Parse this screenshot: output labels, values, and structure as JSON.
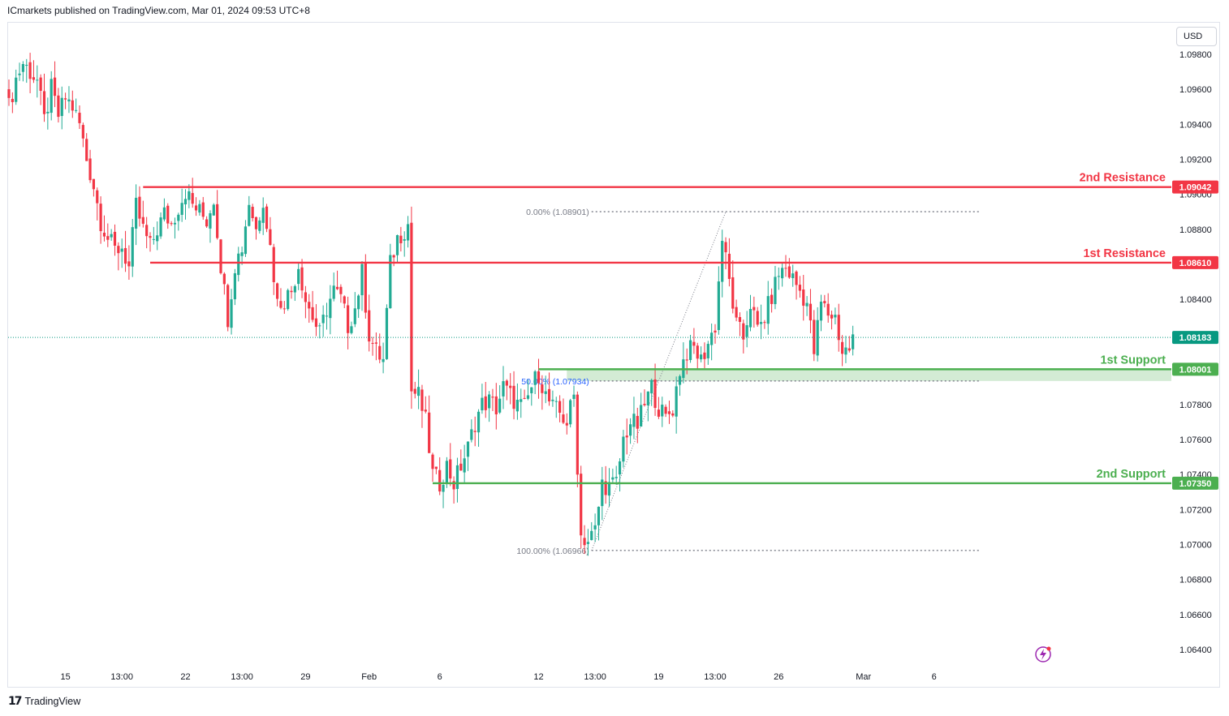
{
  "header": {
    "publisher_line": "ICmarkets published on TradingView.com, Mar 01, 2024 09:53 UTC+8"
  },
  "currency": "USD",
  "footer": {
    "logo_text": "TradingView",
    "logo_mark": "17"
  },
  "colors": {
    "up": "#26a69a",
    "down": "#ef5350",
    "bull_body": "#22ab94",
    "bear_body": "#f23645",
    "resistance": "#f23645",
    "support": "#4caf50",
    "zone": "#c8e6c9",
    "price": "#089981",
    "grid_text": "#131722",
    "fib": "#787b86"
  },
  "chart_data": {
    "type": "candlestick",
    "title": "",
    "ylim": [
      1.063,
      1.0995
    ],
    "y_ticks": [
      "1.09800",
      "1.09600",
      "1.09400",
      "1.09200",
      "1.09000",
      "1.08800",
      "1.08400",
      "1.07800",
      "1.07600",
      "1.07400",
      "1.07200",
      "1.07000",
      "1.06800",
      "1.06600",
      "1.06400"
    ],
    "y_tick_values": [
      1.098,
      1.096,
      1.094,
      1.092,
      1.09,
      1.088,
      1.084,
      1.078,
      1.076,
      1.074,
      1.072,
      1.07,
      1.068,
      1.066,
      1.064
    ],
    "x_ticks": [
      {
        "label": "15",
        "index": 16
      },
      {
        "label": "13:00",
        "index": 32
      },
      {
        "label": "22",
        "index": 50
      },
      {
        "label": "13:00",
        "index": 66
      },
      {
        "label": "29",
        "index": 84
      },
      {
        "label": "Feb",
        "index": 102
      },
      {
        "label": "6",
        "index": 122
      },
      {
        "label": "12",
        "index": 150
      },
      {
        "label": "13:00",
        "index": 166
      },
      {
        "label": "19",
        "index": 184
      },
      {
        "label": "13:00",
        "index": 200
      },
      {
        "label": "26",
        "index": 218
      },
      {
        "label": "Mar",
        "index": 242
      },
      {
        "label": "6",
        "index": 262
      }
    ],
    "last_price": "1.08183",
    "last_price_value": 1.08183,
    "levels": [
      {
        "name": "2nd Resistance",
        "value": 1.09042,
        "label": "1.09042",
        "kind": "resistance",
        "start_index": 38
      },
      {
        "name": "1st Resistance",
        "value": 1.0861,
        "label": "1.08610",
        "kind": "resistance",
        "start_index": 40
      },
      {
        "name": "1st Support",
        "value": 1.08001,
        "label": "1.08001",
        "kind": "support",
        "start_index": 150
      },
      {
        "name": "2nd Support",
        "value": 1.0735,
        "label": "1.07350",
        "kind": "support",
        "start_index": 120
      }
    ],
    "support_zone": {
      "from": 1.07934,
      "to": 1.08001,
      "start_index": 158
    },
    "fibonacci": {
      "start_index": 165,
      "end_index": 203,
      "extend_to_index": 275,
      "levels": [
        {
          "label": "0.00% (1.08901)",
          "value": 1.08901
        },
        {
          "label": "50.00% (1.07934)",
          "value": 1.07934
        },
        {
          "label": "100.00% (1.06966)",
          "value": 1.06966
        }
      ]
    },
    "ohlc_anchors": [
      [
        0,
        1.095
      ],
      [
        2,
        1.0966
      ],
      [
        4,
        1.0975
      ],
      [
        6,
        1.097
      ],
      [
        8,
        1.0965
      ],
      [
        10,
        1.0942
      ],
      [
        12,
        1.096
      ],
      [
        14,
        1.0945
      ],
      [
        16,
        1.0955
      ],
      [
        18,
        1.095
      ],
      [
        20,
        1.094
      ],
      [
        22,
        1.092
      ],
      [
        24,
        1.0905
      ],
      [
        26,
        1.0885
      ],
      [
        28,
        1.0875
      ],
      [
        30,
        1.0868
      ],
      [
        32,
        1.087
      ],
      [
        34,
        1.0858
      ],
      [
        36,
        1.0893
      ],
      [
        38,
        1.088
      ],
      [
        40,
        1.087
      ],
      [
        42,
        1.088
      ],
      [
        44,
        1.0889
      ],
      [
        46,
        1.0883
      ],
      [
        48,
        1.0893
      ],
      [
        50,
        1.0902
      ],
      [
        52,
        1.0894
      ],
      [
        54,
        1.089
      ],
      [
        56,
        1.0885
      ],
      [
        58,
        1.0898
      ],
      [
        60,
        1.086
      ],
      [
        62,
        1.083
      ],
      [
        64,
        1.086
      ],
      [
        66,
        1.087
      ],
      [
        68,
        1.0896
      ],
      [
        70,
        1.088
      ],
      [
        72,
        1.0898
      ],
      [
        74,
        1.087
      ],
      [
        76,
        1.0838
      ],
      [
        78,
        1.084
      ],
      [
        80,
        1.0845
      ],
      [
        82,
        1.086
      ],
      [
        84,
        1.084
      ],
      [
        86,
        1.083
      ],
      [
        88,
        1.082
      ],
      [
        90,
        1.0835
      ],
      [
        92,
        1.0845
      ],
      [
        94,
        1.084
      ],
      [
        96,
        1.0825
      ],
      [
        98,
        1.0835
      ],
      [
        100,
        1.0855
      ],
      [
        102,
        1.082
      ],
      [
        104,
        1.081
      ],
      [
        106,
        1.0805
      ],
      [
        108,
        1.086
      ],
      [
        110,
        1.0875
      ],
      [
        112,
        1.088
      ],
      [
        113,
        1.0883
      ],
      [
        114,
        1.0788
      ],
      [
        116,
        1.0785
      ],
      [
        118,
        1.077
      ],
      [
        120,
        1.074
      ],
      [
        122,
        1.0735
      ],
      [
        124,
        1.0745
      ],
      [
        126,
        1.0735
      ],
      [
        128,
        1.0745
      ],
      [
        130,
        1.0755
      ],
      [
        132,
        1.077
      ],
      [
        134,
        1.078
      ],
      [
        136,
        1.0782
      ],
      [
        138,
        1.0778
      ],
      [
        140,
        1.079
      ],
      [
        142,
        1.0785
      ],
      [
        144,
        1.078
      ],
      [
        146,
        1.0778
      ],
      [
        148,
        1.079
      ],
      [
        150,
        1.0798
      ],
      [
        152,
        1.0785
      ],
      [
        154,
        1.0778
      ],
      [
        156,
        1.0775
      ],
      [
        158,
        1.077
      ],
      [
        160,
        1.0785
      ],
      [
        162,
        1.0705
      ],
      [
        164,
        1.0702
      ],
      [
        166,
        1.0708
      ],
      [
        168,
        1.0735
      ],
      [
        170,
        1.0733
      ],
      [
        172,
        1.0735
      ],
      [
        174,
        1.076
      ],
      [
        176,
        1.077
      ],
      [
        178,
        1.0768
      ],
      [
        180,
        1.078
      ],
      [
        182,
        1.079
      ],
      [
        184,
        1.0778
      ],
      [
        186,
        1.0772
      ],
      [
        188,
        1.0778
      ],
      [
        190,
        1.08
      ],
      [
        192,
        1.081
      ],
      [
        194,
        1.0812
      ],
      [
        196,
        1.0805
      ],
      [
        198,
        1.0815
      ],
      [
        200,
        1.0825
      ],
      [
        202,
        1.0875
      ],
      [
        204,
        1.085
      ],
      [
        206,
        1.0825
      ],
      [
        208,
        1.0818
      ],
      [
        210,
        1.0838
      ],
      [
        212,
        1.0822
      ],
      [
        214,
        1.083
      ],
      [
        216,
        1.0842
      ],
      [
        218,
        1.0855
      ],
      [
        220,
        1.0858
      ],
      [
        222,
        1.0852
      ],
      [
        224,
        1.0845
      ],
      [
        226,
        1.0838
      ],
      [
        228,
        1.081
      ],
      [
        230,
        1.0838
      ],
      [
        232,
        1.0832
      ],
      [
        234,
        1.083
      ],
      [
        236,
        1.081
      ],
      [
        238,
        1.0812
      ],
      [
        239,
        1.0818
      ]
    ]
  }
}
